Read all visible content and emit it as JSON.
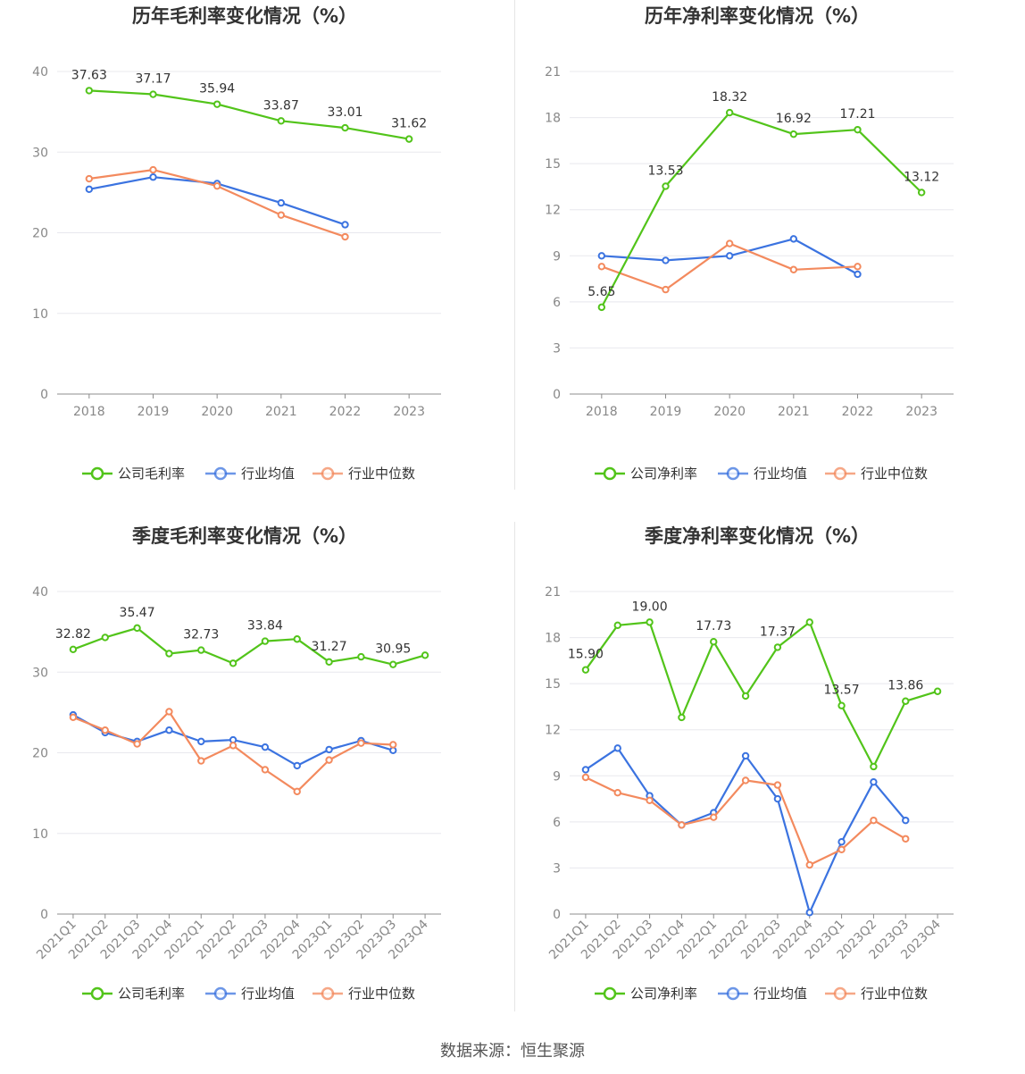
{
  "source_text": "数据来源：恒生聚源",
  "chart_data": [
    {
      "type": "line",
      "title": "历年毛利率变化情况（%）",
      "categories": [
        "2018",
        "2019",
        "2020",
        "2021",
        "2022",
        "2023"
      ],
      "ylim": [
        0,
        40
      ],
      "yticks": [
        0,
        10,
        20,
        30,
        40
      ],
      "series": [
        {
          "name": "公司毛利率",
          "color": "#52c41a",
          "values": [
            37.63,
            37.17,
            35.94,
            33.87,
            33.01,
            31.62
          ],
          "labels": [
            "37.63",
            "37.17",
            "35.94",
            "33.87",
            "33.01",
            "31.62"
          ]
        },
        {
          "name": "行业均值",
          "color": "#3b73e0",
          "values": [
            25.4,
            26.9,
            26.1,
            23.7,
            21.0,
            null
          ]
        },
        {
          "name": "行业中位数",
          "color": "#f38a5e",
          "values": [
            26.7,
            27.8,
            25.8,
            22.2,
            19.5,
            null
          ]
        }
      ]
    },
    {
      "type": "line",
      "title": "历年净利率变化情况（%）",
      "categories": [
        "2018",
        "2019",
        "2020",
        "2021",
        "2022",
        "2023"
      ],
      "ylim": [
        0,
        21
      ],
      "yticks": [
        0,
        3,
        6,
        9,
        12,
        15,
        18,
        21
      ],
      "series": [
        {
          "name": "公司净利率",
          "color": "#52c41a",
          "values": [
            5.65,
            13.53,
            18.32,
            16.92,
            17.21,
            13.12
          ],
          "labels": [
            "5.65",
            "13.53",
            "18.32",
            "16.92",
            "17.21",
            "13.12"
          ]
        },
        {
          "name": "行业均值",
          "color": "#3b73e0",
          "values": [
            9.0,
            8.7,
            9.0,
            10.1,
            7.8,
            null
          ]
        },
        {
          "name": "行业中位数",
          "color": "#f38a5e",
          "values": [
            8.3,
            6.8,
            9.8,
            8.1,
            8.3,
            null
          ]
        }
      ]
    },
    {
      "type": "line",
      "title": "季度毛利率变化情况（%）",
      "categories": [
        "2021Q1",
        "2021Q2",
        "2021Q3",
        "2021Q4",
        "2022Q1",
        "2022Q2",
        "2022Q3",
        "2022Q4",
        "2023Q1",
        "2023Q2",
        "2023Q3",
        "2023Q4"
      ],
      "ylim": [
        0,
        40
      ],
      "yticks": [
        0,
        10,
        20,
        30,
        40
      ],
      "series": [
        {
          "name": "公司毛利率",
          "color": "#52c41a",
          "values": [
            32.82,
            34.3,
            35.47,
            32.3,
            32.73,
            31.1,
            33.84,
            34.1,
            31.27,
            31.9,
            30.95,
            32.1
          ],
          "labels": [
            "32.82",
            null,
            "35.47",
            null,
            "32.73",
            null,
            "33.84",
            null,
            "31.27",
            null,
            "30.95",
            null
          ]
        },
        {
          "name": "行业均值",
          "color": "#3b73e0",
          "values": [
            24.7,
            22.5,
            21.4,
            22.8,
            21.4,
            21.6,
            20.7,
            18.4,
            20.4,
            21.5,
            20.3,
            null
          ]
        },
        {
          "name": "行业中位数",
          "color": "#f38a5e",
          "values": [
            24.4,
            22.8,
            21.1,
            25.1,
            19.0,
            20.9,
            17.9,
            15.2,
            19.1,
            21.2,
            21.0,
            null
          ]
        }
      ]
    },
    {
      "type": "line",
      "title": "季度净利率变化情况（%）",
      "categories": [
        "2021Q1",
        "2021Q2",
        "2021Q3",
        "2021Q4",
        "2022Q1",
        "2022Q2",
        "2022Q3",
        "2022Q4",
        "2023Q1",
        "2023Q2",
        "2023Q3",
        "2023Q4"
      ],
      "ylim": [
        0,
        21
      ],
      "yticks": [
        0,
        3,
        6,
        9,
        12,
        15,
        18,
        21
      ],
      "series": [
        {
          "name": "公司净利率",
          "color": "#52c41a",
          "values": [
            15.9,
            18.8,
            19.0,
            12.8,
            17.73,
            14.2,
            17.37,
            19.0,
            13.57,
            9.6,
            13.86,
            14.5
          ],
          "labels": [
            "15.90",
            null,
            "19.00",
            null,
            "17.73",
            null,
            "17.37",
            null,
            "13.57",
            null,
            "13.86",
            null
          ]
        },
        {
          "name": "行业均值",
          "color": "#3b73e0",
          "values": [
            9.4,
            10.8,
            7.7,
            5.8,
            6.6,
            10.3,
            7.5,
            0.1,
            4.7,
            8.6,
            6.1,
            null
          ]
        },
        {
          "name": "行业中位数",
          "color": "#f38a5e",
          "values": [
            8.9,
            7.9,
            7.4,
            5.8,
            6.3,
            8.7,
            8.4,
            3.2,
            4.2,
            6.1,
            4.9,
            null
          ]
        }
      ]
    }
  ]
}
